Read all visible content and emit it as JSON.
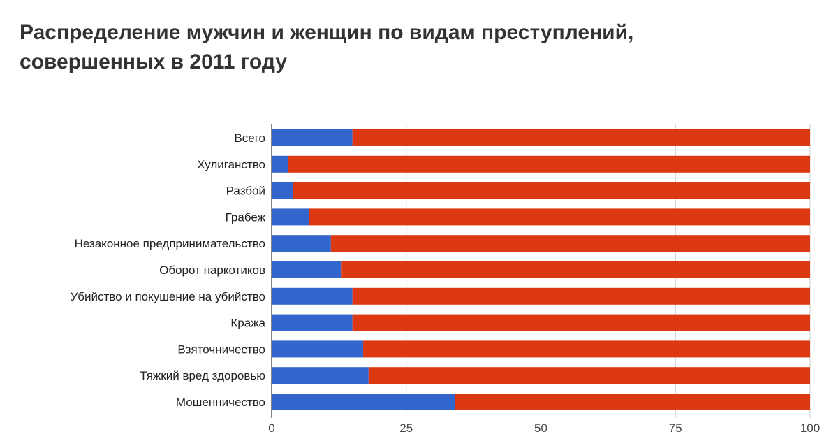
{
  "chart_data": {
    "type": "bar",
    "orientation": "horizontal",
    "stacked": true,
    "title_lines": [
      "Распределение мужчин и женщин по видам преступлений,",
      "совершенных в 2011 году"
    ],
    "categories": [
      "Всего",
      "Хулиганство",
      "Разбой",
      "Грабеж",
      "Незаконное предпринимательство",
      "Оборот наркотиков",
      "Убийство и покушение на убийство",
      "Кража",
      "Взяточничество",
      "Тяжкий вред здоровью",
      "Мошенничество"
    ],
    "series": [
      {
        "color": "#3366cc",
        "values": [
          15,
          3,
          4,
          7,
          11,
          13,
          15,
          15,
          17,
          18,
          34
        ]
      },
      {
        "color": "#dc3912",
        "values": [
          85,
          97,
          96,
          93,
          89,
          87,
          85,
          85,
          83,
          82,
          66
        ]
      }
    ],
    "xlim": [
      0,
      100
    ],
    "x_ticks": [
      0,
      25,
      50,
      75,
      100
    ],
    "grid": true,
    "legend": "none"
  }
}
